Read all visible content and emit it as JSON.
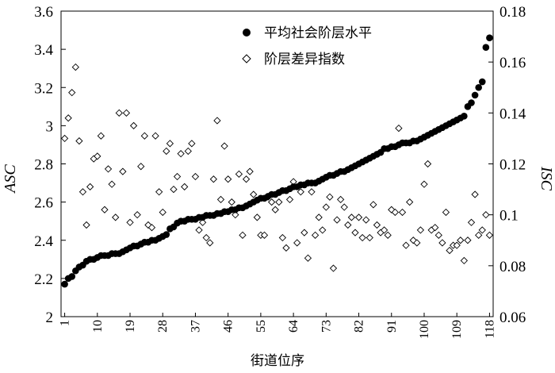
{
  "chart_data": {
    "type": "scatter",
    "xlabel": "街道位序",
    "ylabel_left": "ASC",
    "ylabel_right": "ISC",
    "x_ticks": [
      1,
      10,
      19,
      28,
      37,
      46,
      55,
      64,
      73,
      82,
      91,
      100,
      109,
      118
    ],
    "x_range": [
      0,
      119
    ],
    "y_left_ticks": [
      "2",
      "2.2",
      "2.4",
      "2.6",
      "2.8",
      "3",
      "3.2",
      "3.4",
      "3.6"
    ],
    "ylim_left": [
      2,
      3.6
    ],
    "y_right_ticks": [
      "0.06",
      "0.08",
      "0.1",
      "0.12",
      "0.14",
      "0.16",
      "0.18"
    ],
    "ylim_right": [
      0.06,
      0.18
    ],
    "legend_position": "top-right",
    "series": [
      {
        "name": "平均社会阶层水平",
        "axis": "left",
        "marker": "filled-circle",
        "color": "#000000",
        "x": [
          1,
          2,
          3,
          4,
          5,
          6,
          7,
          8,
          9,
          10,
          11,
          12,
          13,
          14,
          15,
          16,
          17,
          18,
          19,
          20,
          21,
          22,
          23,
          24,
          25,
          26,
          27,
          28,
          29,
          30,
          31,
          32,
          33,
          34,
          35,
          36,
          37,
          38,
          39,
          40,
          41,
          42,
          43,
          44,
          45,
          46,
          47,
          48,
          49,
          50,
          51,
          52,
          53,
          54,
          55,
          56,
          57,
          58,
          59,
          60,
          61,
          62,
          63,
          64,
          65,
          66,
          67,
          68,
          69,
          70,
          71,
          72,
          73,
          74,
          75,
          76,
          77,
          78,
          79,
          80,
          81,
          82,
          83,
          84,
          85,
          86,
          87,
          88,
          89,
          90,
          91,
          92,
          93,
          94,
          95,
          96,
          97,
          98,
          99,
          100,
          101,
          102,
          103,
          104,
          105,
          106,
          107,
          108,
          109,
          110,
          111,
          112,
          113,
          114,
          115,
          116,
          117,
          118
        ],
        "values": [
          2.17,
          2.2,
          2.21,
          2.24,
          2.26,
          2.27,
          2.29,
          2.3,
          2.3,
          2.31,
          2.32,
          2.32,
          2.32,
          2.33,
          2.33,
          2.33,
          2.34,
          2.35,
          2.36,
          2.37,
          2.37,
          2.38,
          2.39,
          2.39,
          2.4,
          2.4,
          2.41,
          2.42,
          2.43,
          2.46,
          2.47,
          2.49,
          2.5,
          2.5,
          2.51,
          2.51,
          2.51,
          2.52,
          2.52,
          2.53,
          2.53,
          2.53,
          2.54,
          2.54,
          2.55,
          2.55,
          2.56,
          2.56,
          2.57,
          2.57,
          2.58,
          2.59,
          2.6,
          2.61,
          2.62,
          2.62,
          2.63,
          2.64,
          2.64,
          2.65,
          2.66,
          2.66,
          2.67,
          2.68,
          2.68,
          2.69,
          2.69,
          2.7,
          2.7,
          2.7,
          2.71,
          2.72,
          2.73,
          2.74,
          2.74,
          2.75,
          2.76,
          2.76,
          2.77,
          2.78,
          2.79,
          2.8,
          2.81,
          2.82,
          2.83,
          2.84,
          2.85,
          2.86,
          2.88,
          2.88,
          2.89,
          2.89,
          2.9,
          2.91,
          2.91,
          2.91,
          2.92,
          2.92,
          2.93,
          2.94,
          2.95,
          2.96,
          2.97,
          2.98,
          2.99,
          3.0,
          3.01,
          3.02,
          3.03,
          3.04,
          3.05,
          3.1,
          3.12,
          3.16,
          3.2,
          3.23,
          3.41,
          3.46
        ]
      },
      {
        "name": "阶层差异指数",
        "axis": "right",
        "marker": "hollow-diamond",
        "color": "#000000",
        "x": [
          1,
          2,
          3,
          4,
          5,
          6,
          7,
          8,
          9,
          10,
          11,
          12,
          13,
          14,
          15,
          16,
          17,
          18,
          19,
          20,
          21,
          22,
          23,
          24,
          25,
          26,
          27,
          28,
          29,
          30,
          31,
          32,
          33,
          34,
          35,
          36,
          37,
          38,
          39,
          40,
          41,
          42,
          43,
          44,
          45,
          46,
          47,
          48,
          49,
          50,
          51,
          52,
          53,
          54,
          55,
          56,
          57,
          58,
          59,
          60,
          61,
          62,
          63,
          64,
          65,
          66,
          67,
          68,
          69,
          70,
          71,
          72,
          73,
          74,
          75,
          76,
          77,
          78,
          79,
          80,
          81,
          82,
          83,
          84,
          85,
          86,
          87,
          88,
          89,
          90,
          91,
          92,
          93,
          94,
          95,
          96,
          97,
          98,
          99,
          100,
          101,
          102,
          103,
          104,
          105,
          106,
          107,
          108,
          109,
          110,
          111,
          112,
          113,
          114,
          115,
          116,
          117,
          118
        ],
        "values": [
          0.13,
          0.138,
          0.148,
          0.158,
          0.129,
          0.109,
          0.096,
          0.111,
          0.122,
          0.123,
          0.131,
          0.102,
          0.118,
          0.112,
          0.099,
          0.14,
          0.117,
          0.14,
          0.097,
          0.135,
          0.1,
          0.119,
          0.131,
          0.096,
          0.095,
          0.131,
          0.109,
          0.101,
          0.125,
          0.128,
          0.11,
          0.115,
          0.124,
          0.111,
          0.125,
          0.128,
          0.115,
          0.094,
          0.097,
          0.091,
          0.089,
          0.114,
          0.137,
          0.106,
          0.127,
          0.114,
          0.105,
          0.1,
          0.116,
          0.092,
          0.114,
          0.117,
          0.108,
          0.099,
          0.092,
          0.092,
          0.107,
          0.105,
          0.102,
          0.105,
          0.091,
          0.087,
          0.106,
          0.113,
          0.089,
          0.109,
          0.093,
          0.083,
          0.109,
          0.092,
          0.099,
          0.094,
          0.103,
          0.107,
          0.079,
          0.098,
          0.106,
          0.103,
          0.096,
          0.099,
          0.093,
          0.099,
          0.091,
          0.098,
          0.091,
          0.104,
          0.096,
          0.093,
          0.094,
          0.092,
          0.102,
          0.101,
          0.134,
          0.101,
          0.088,
          0.105,
          0.09,
          0.089,
          0.094,
          0.112,
          0.12,
          0.094,
          0.095,
          0.092,
          0.089,
          0.101,
          0.086,
          0.088,
          0.088,
          0.09,
          0.082,
          0.09,
          0.097,
          0.108,
          0.092,
          0.094,
          0.1,
          0.092
        ]
      }
    ]
  }
}
